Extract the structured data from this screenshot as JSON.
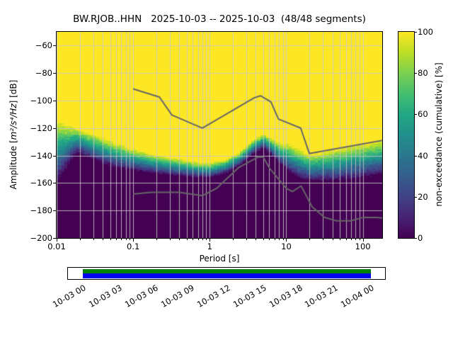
{
  "title": "BW.RJOB..HHN   2025-10-03 -- 2025-10-03  (48/48 segments)",
  "station_id": "BW.RJOB..HHN",
  "date_range": "2025-10-03 -- 2025-10-03",
  "segments_label": "(48/48 segments)",
  "axes": {
    "xlabel": "Period [s]",
    "ylabel": "Amplitude [m²/s⁴/Hz] [dB]",
    "ylabel_pre": "Amplitude [",
    "ylabel_math": "m²/s⁴/Hz",
    "ylabel_post": "] [dB]",
    "x_ticks": [
      0.01,
      0.1,
      1,
      10,
      100
    ],
    "x_tick_labels": [
      "0.01",
      "0.1",
      "1",
      "10",
      "100"
    ],
    "y_ticks": [
      -60,
      -80,
      -100,
      -120,
      -140,
      -160,
      -180,
      -200
    ],
    "y_tick_labels": [
      "−60",
      "−80",
      "−100",
      "−120",
      "−140",
      "−160",
      "−180",
      "−200"
    ]
  },
  "colorbar": {
    "label": "non-exceedance (cumulative) [%]",
    "ticks": [
      0,
      20,
      40,
      60,
      80,
      100
    ],
    "tick_labels": [
      "0",
      "20",
      "40",
      "60",
      "80",
      "100"
    ]
  },
  "timeline": {
    "tick_labels": [
      "10-03 00",
      "10-03 03",
      "10-03 06",
      "10-03 09",
      "10-03 12",
      "10-03 15",
      "10-03 18",
      "10-03 21",
      "10-04 00"
    ]
  },
  "colors": {
    "background": "#ffffff",
    "grid": "#c8c8c8",
    "spine": "#000000",
    "noise_model_line": "#666666",
    "timeline_green": "#008000",
    "timeline_blue": "#0000ee",
    "viridis": [
      [
        0.0,
        "#440154"
      ],
      [
        0.1,
        "#482475"
      ],
      [
        0.2,
        "#414487"
      ],
      [
        0.3,
        "#355f8d"
      ],
      [
        0.4,
        "#2a788e"
      ],
      [
        0.5,
        "#21918c"
      ],
      [
        0.6,
        "#22a884"
      ],
      [
        0.7,
        "#44bf70"
      ],
      [
        0.8,
        "#7ad151"
      ],
      [
        0.9,
        "#bddf26"
      ],
      [
        1.0,
        "#fde725"
      ]
    ]
  },
  "chart_data": {
    "type": "heatmap",
    "subtype": "ppsd-cumulative-histogram",
    "title": "BW.RJOB..HHN   2025-10-03 -- 2025-10-03  (48/48 segments)",
    "x_axis": {
      "label": "Period [s]",
      "scale": "log",
      "range": [
        0.01,
        179
      ]
    },
    "y_axis": {
      "label": "Amplitude [m²/s⁴/Hz] [dB]",
      "range": [
        -200,
        -50
      ],
      "tick_step": 20
    },
    "colorbar": {
      "label": "non-exceedance (cumulative) [%]",
      "range": [
        0,
        100
      ],
      "colormap": "viridis"
    },
    "distribution_band": {
      "description": "Cumulative non-exceedance: 0% (dark purple) below low_db, 100% (yellow) above high_db, viridis gradient between; quantized in 1 dB amplitude bins and 1/8-octave period bins",
      "periods": [
        0.01,
        0.013,
        0.018,
        0.025,
        0.04,
        0.06,
        0.1,
        0.18,
        0.35,
        0.7,
        1.0,
        1.6,
        2.5,
        3.5,
        5.0,
        6.5,
        8.5,
        11,
        15,
        20,
        30,
        50,
        90,
        179
      ],
      "high_db": [
        -114,
        -117,
        -120,
        -123,
        -127,
        -131,
        -135,
        -139,
        -142,
        -145,
        -145.5,
        -143,
        -137,
        -130,
        -124.5,
        -128,
        -131,
        -131.5,
        -135,
        -139.5,
        -137.5,
        -134.5,
        -132,
        -129
      ],
      "low_db": [
        -160,
        -150,
        -138,
        -141,
        -146,
        -149,
        -151,
        -153,
        -154.5,
        -156,
        -156,
        -153,
        -147.5,
        -140,
        -134.5,
        -140,
        -147,
        -152.5,
        -156.5,
        -158,
        -158.5,
        -158,
        -156.5,
        -154
      ]
    },
    "noise_models": {
      "nhnm": [
        [
          0.1,
          -91.5
        ],
        [
          0.22,
          -97.4
        ],
        [
          0.32,
          -110.5
        ],
        [
          0.8,
          -120.0
        ],
        [
          3.8,
          -98.0
        ],
        [
          4.6,
          -96.5
        ],
        [
          6.3,
          -101.0
        ],
        [
          7.9,
          -113.5
        ],
        [
          15.4,
          -120.0
        ],
        [
          20.0,
          -138.5
        ],
        [
          354.8,
          -126.0
        ]
      ],
      "nlnm": [
        [
          0.1,
          -168.0
        ],
        [
          0.17,
          -166.7
        ],
        [
          0.4,
          -166.7
        ],
        [
          0.8,
          -169.2
        ],
        [
          1.24,
          -163.7
        ],
        [
          2.4,
          -148.6
        ],
        [
          4.3,
          -141.1
        ],
        [
          5.0,
          -141.1
        ],
        [
          6.0,
          -149.0
        ],
        [
          10.0,
          -163.8
        ],
        [
          12.0,
          -166.2
        ],
        [
          15.6,
          -162.1
        ],
        [
          21.9,
          -177.5
        ],
        [
          31.6,
          -185.0
        ],
        [
          45.0,
          -187.5
        ],
        [
          70.0,
          -187.5
        ],
        [
          101.0,
          -185.0
        ],
        [
          154.0,
          -185.0
        ],
        [
          328.0,
          -187.5
        ]
      ]
    }
  }
}
